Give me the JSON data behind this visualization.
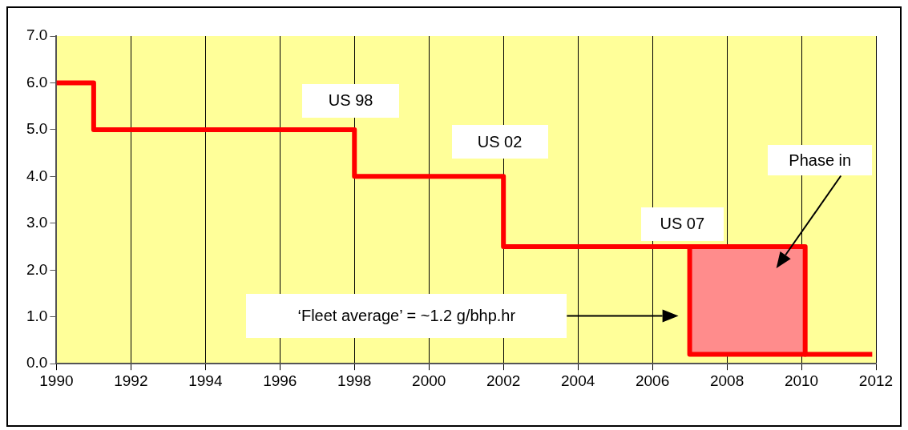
{
  "chart_data": {
    "type": "line",
    "xlim": [
      1990,
      2012
    ],
    "xticks": [
      1990,
      1992,
      1994,
      1996,
      1998,
      2000,
      2002,
      2004,
      2006,
      2008,
      2010,
      2012
    ],
    "ylim": [
      0,
      7
    ],
    "yticks": [
      {
        "value": 0,
        "label": "0.0"
      },
      {
        "value": 1,
        "label": "1.0"
      },
      {
        "value": 2,
        "label": "2.0"
      },
      {
        "value": 3,
        "label": "3.0"
      },
      {
        "value": 4,
        "label": "4.0"
      },
      {
        "value": 5,
        "label": "5.0"
      },
      {
        "value": 6,
        "label": "6.0"
      },
      {
        "value": 7,
        "label": "7.0"
      }
    ],
    "grid": "x",
    "line_style": "solid",
    "marker": "none",
    "series": [
      {
        "color": "#ff0000",
        "x": [
          1990,
          1991,
          1991,
          1998,
          1998,
          2002,
          2002,
          2007,
          2007,
          2011.9
        ],
        "values": [
          6,
          6,
          5,
          5,
          4,
          4,
          2.5,
          2.5,
          0.2,
          0.2
        ]
      },
      {
        "color": "#ff0000",
        "x": [
          2007,
          2010.1,
          2010.1
        ],
        "values": [
          2.5,
          2.5,
          0.2
        ],
        "lower": [
          0.2,
          0.2,
          0.2
        ],
        "upper": [
          2.5,
          2.5,
          2.5
        ]
      }
    ],
    "annotations": [
      "US 98",
      "US 02",
      "US 07",
      "Phase in",
      "‘Fleet average’ = ~1.2 g/bhp.hr"
    ]
  }
}
